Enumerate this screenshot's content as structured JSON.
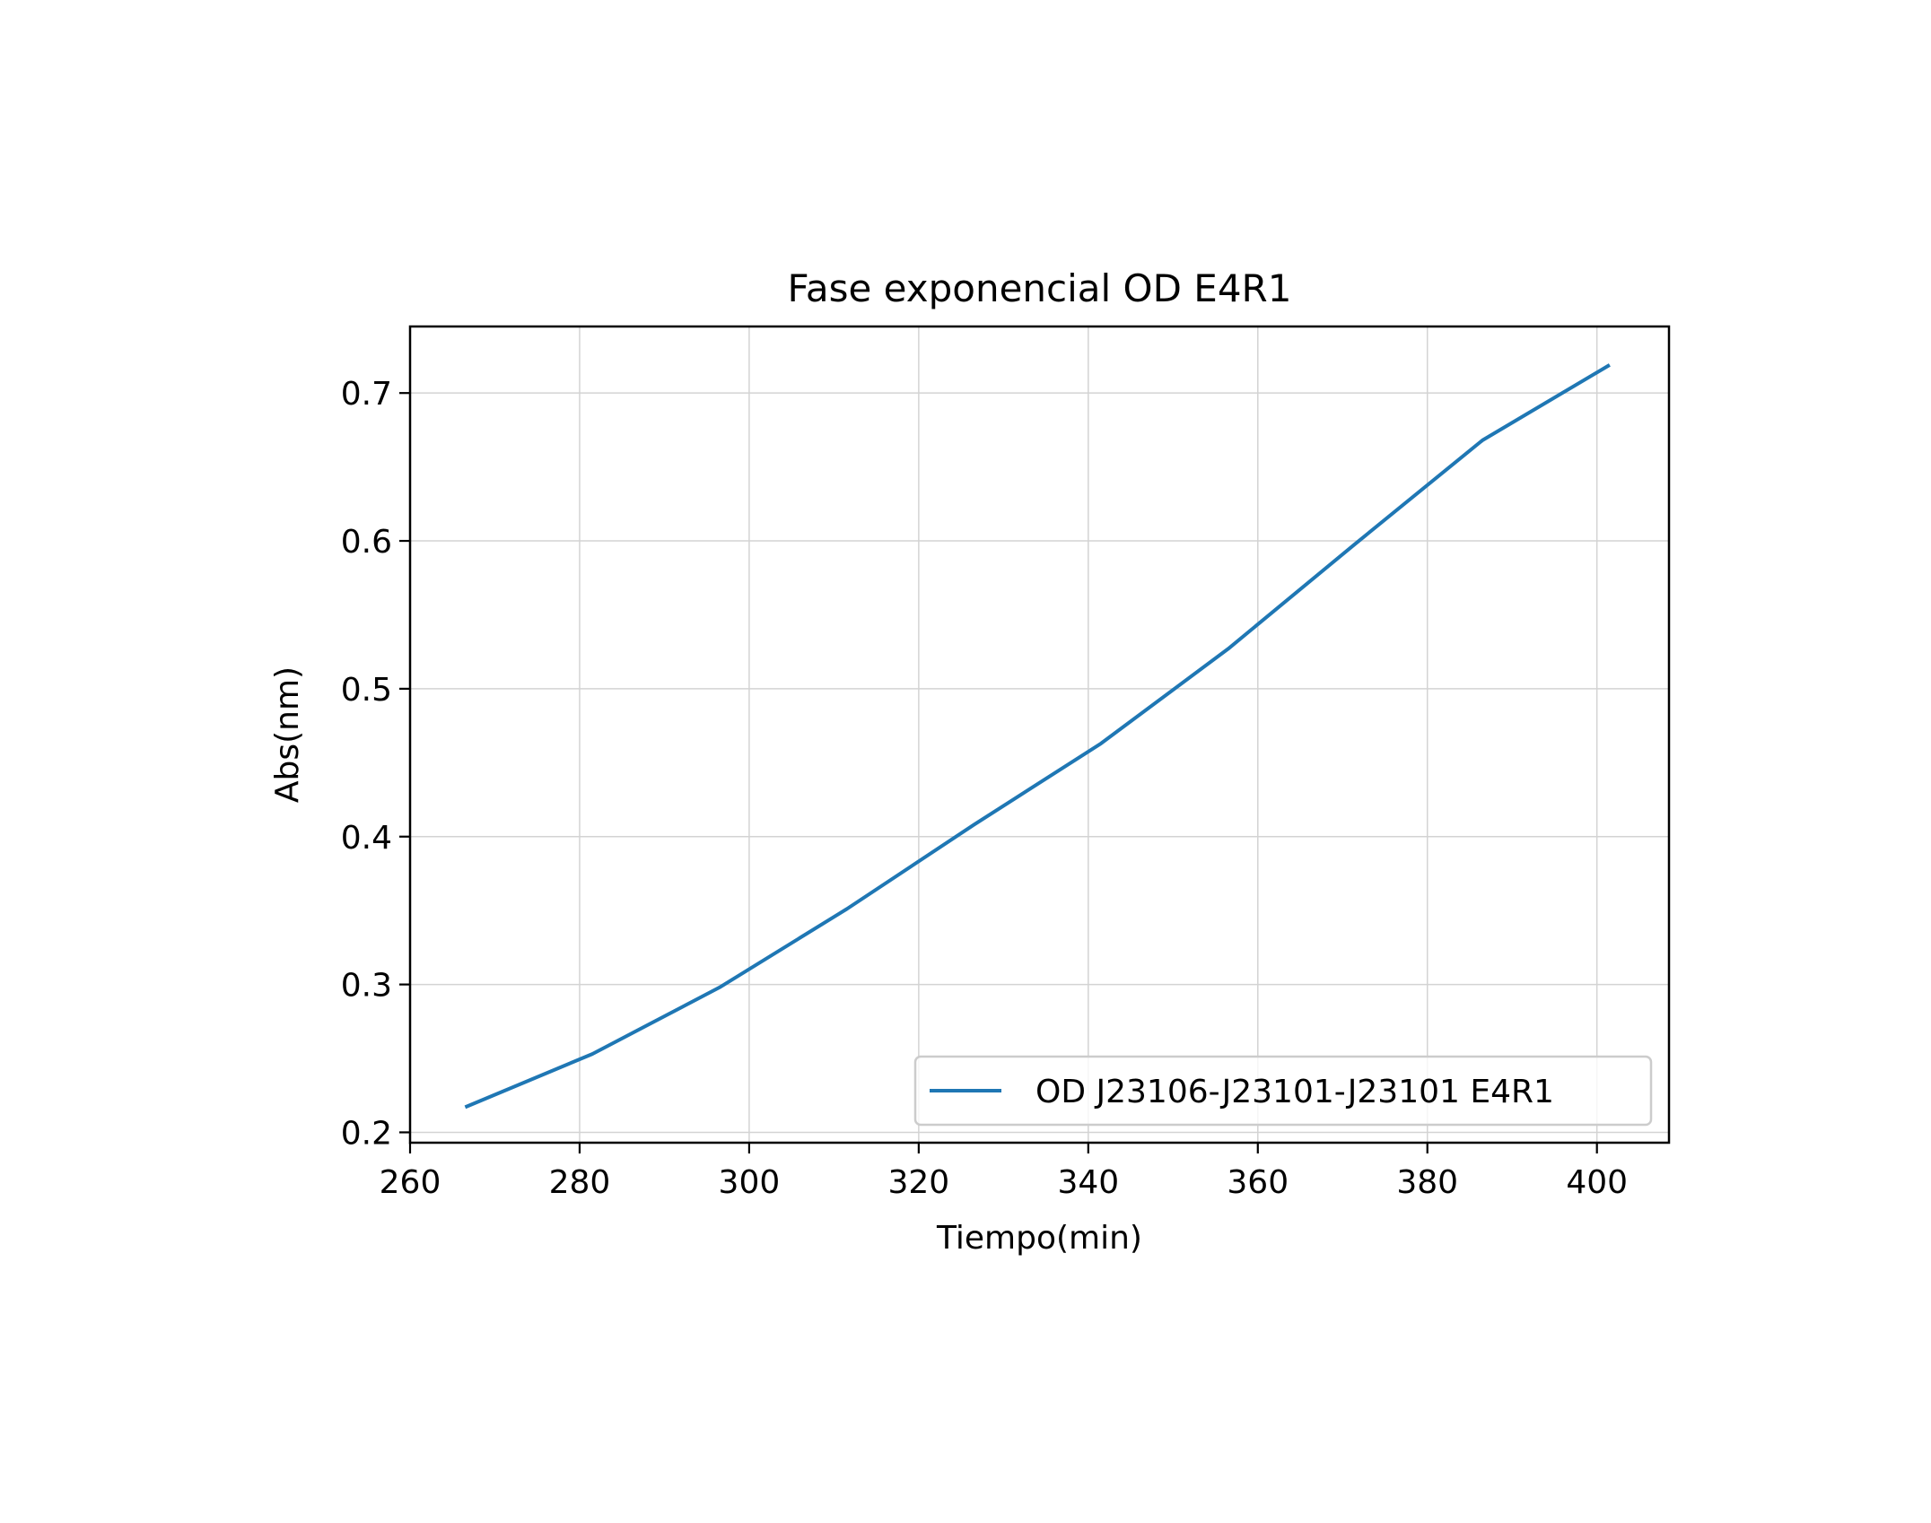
{
  "chart_data": {
    "type": "line",
    "title": "Fase exponencial OD E4R1",
    "xlabel": "Tiempo(min)",
    "ylabel": "Abs(nm)",
    "xlim": [
      260,
      408.5
    ],
    "ylim": [
      0.193,
      0.745
    ],
    "xticks": [
      260,
      280,
      300,
      320,
      340,
      360,
      380,
      400
    ],
    "yticks": [
      0.2,
      0.3,
      0.4,
      0.5,
      0.6,
      0.7
    ],
    "xtick_labels": [
      "260",
      "280",
      "300",
      "320",
      "340",
      "360",
      "380",
      "400"
    ],
    "ytick_labels": [
      "0.2",
      "0.3",
      "0.4",
      "0.5",
      "0.6",
      "0.7"
    ],
    "grid": true,
    "legend_position": "lower-right",
    "series": [
      {
        "name": "OD J23106-J23101-J23101 E4R1",
        "color": "#1f77b4",
        "x": [
          266.5,
          281.5,
          296.5,
          311.5,
          326.5,
          341.5,
          356.5,
          371.5,
          386.5,
          401.5
        ],
        "y": [
          0.217,
          0.253,
          0.298,
          0.351,
          0.408,
          0.463,
          0.527,
          0.598,
          0.668,
          0.719
        ]
      }
    ]
  }
}
